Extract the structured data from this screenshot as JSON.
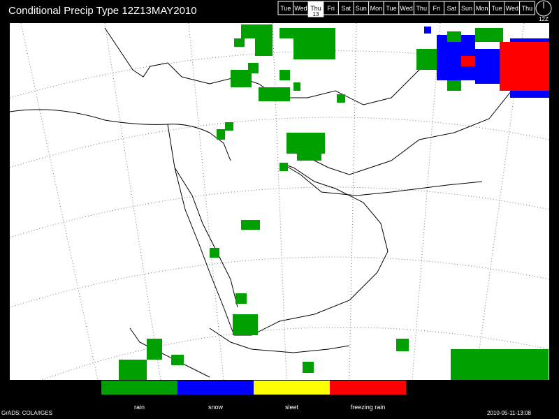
{
  "header": {
    "title": "Conditional Precip Type 12Z13MAY2010",
    "days": [
      "Tue",
      "Wed",
      "Thu",
      "Fri",
      "Sat",
      "Sun",
      "Mon",
      "Tue",
      "Wed",
      "Thu",
      "Fri",
      "Sat",
      "Sun",
      "Mon",
      "Tue",
      "Wed",
      "Thu"
    ],
    "day_number": "13",
    "time": "12Z"
  },
  "legend": {
    "items": [
      {
        "label": "rain",
        "color": "#00a000"
      },
      {
        "label": "snow",
        "color": "#0000ff"
      },
      {
        "label": "sleet",
        "color": "#ffff00"
      },
      {
        "label": "freezing rain",
        "color": "#ff0000"
      }
    ]
  },
  "footer": {
    "left": "GrADS: COLA/IGES",
    "right": "2010-05-11-13:08"
  }
}
